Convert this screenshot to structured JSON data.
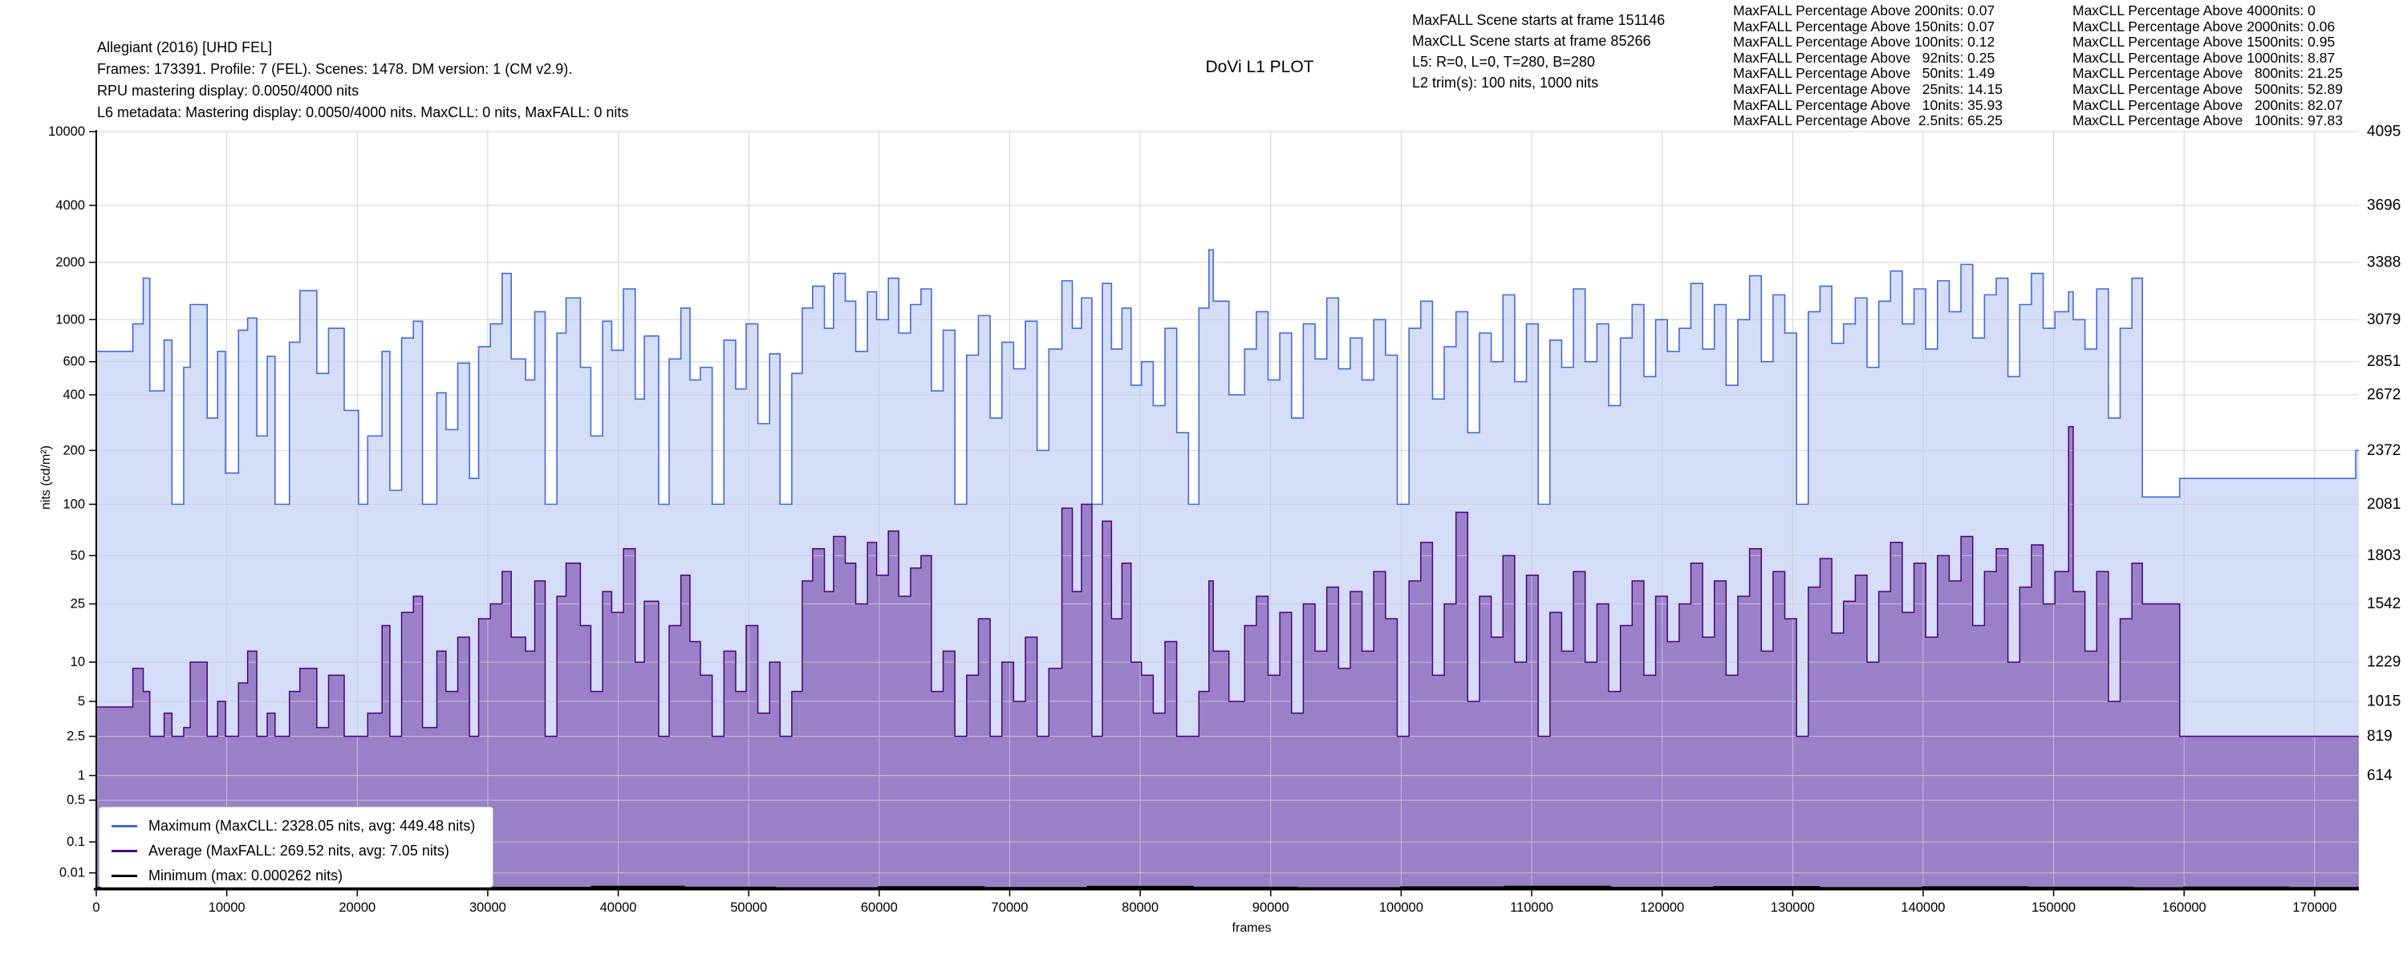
{
  "header": {
    "lines": [
      "Allegiant (2016) [UHD FEL]",
      "Frames: 173391. Profile: 7 (FEL). Scenes: 1478. DM version: 1 (CM v2.9).",
      "RPU mastering display: 0.0050/4000 nits",
      "L6 metadata: Mastering display: 0.0050/4000 nits. MaxCLL: 0 nits, MaxFALL: 0 nits"
    ]
  },
  "title": "DoVi L1 PLOT",
  "scene_info": {
    "lines": [
      "MaxFALL Scene starts at frame 151146",
      "MaxCLL Scene starts at frame 85266",
      "L5: R=0, L=0, T=280, B=280",
      "L2 trim(s): 100 nits, 1000 nits"
    ]
  },
  "stats_maxfall": {
    "lines": [
      "MaxFALL Percentage Above 200nits: 0.07",
      "MaxFALL Percentage Above 150nits: 0.07",
      "MaxFALL Percentage Above 100nits: 0.12",
      "MaxFALL Percentage Above   92nits: 0.25",
      "MaxFALL Percentage Above   50nits: 1.49",
      "MaxFALL Percentage Above   25nits: 14.15",
      "MaxFALL Percentage Above   10nits: 35.93",
      "MaxFALL Percentage Above  2.5nits: 65.25"
    ]
  },
  "stats_maxcll": {
    "lines": [
      "MaxCLL Percentage Above 4000nits: 0",
      "MaxCLL Percentage Above 2000nits: 0.06",
      "MaxCLL Percentage Above 1500nits: 0.95",
      "MaxCLL Percentage Above 1000nits: 8.87",
      "MaxCLL Percentage Above   800nits: 21.25",
      "MaxCLL Percentage Above   500nits: 52.89",
      "MaxCLL Percentage Above   200nits: 82.07",
      "MaxCLL Percentage Above   100nits: 97.83"
    ]
  },
  "legend": {
    "items": [
      {
        "label": "Maximum (MaxCLL: 2328.05 nits, avg: 449.48 nits)",
        "color": "#4169e1"
      },
      {
        "label": "Average (MaxFALL: 269.52 nits, avg: 7.05 nits)",
        "color": "#4b0082"
      },
      {
        "label": "Minimum (max: 0.000262 nits)",
        "color": "#000000"
      }
    ]
  },
  "axes": {
    "y_label": "nits (cd/m²)",
    "x_label": "frames",
    "y_ticks": [
      {
        "nits": 10000,
        "left": "10000",
        "right": "4095"
      },
      {
        "nits": 4000,
        "left": "4000",
        "right": "3696"
      },
      {
        "nits": 2000,
        "left": "2000",
        "right": "3388"
      },
      {
        "nits": 1000,
        "left": "1000",
        "right": "3079"
      },
      {
        "nits": 600,
        "left": "600",
        "right": "2851"
      },
      {
        "nits": 400,
        "left": "400",
        "right": "2672"
      },
      {
        "nits": 200,
        "left": "200",
        "right": "2372"
      },
      {
        "nits": 100,
        "left": "100",
        "right": "2081"
      },
      {
        "nits": 50,
        "left": "50",
        "right": "1803"
      },
      {
        "nits": 25,
        "left": "25",
        "right": "1542"
      },
      {
        "nits": 10,
        "left": "10",
        "right": "1229"
      },
      {
        "nits": 5,
        "left": "5",
        "right": "1015"
      },
      {
        "nits": 2.5,
        "left": "2.5",
        "right": "819"
      },
      {
        "nits": 1,
        "left": "1",
        "right": "614"
      },
      {
        "nits": 0.5,
        "left": "0.5",
        "right": ""
      },
      {
        "nits": 0.1,
        "left": "0.1",
        "right": ""
      },
      {
        "nits": 0.01,
        "left": "0.01",
        "right": ""
      }
    ],
    "x_ticks": [
      0,
      10000,
      20000,
      30000,
      40000,
      50000,
      60000,
      70000,
      80000,
      90000,
      100000,
      110000,
      120000,
      130000,
      140000,
      150000,
      160000,
      170000
    ]
  },
  "chart_data": {
    "type": "area",
    "title": "DoVi L1 PLOT",
    "xlabel": "frames",
    "ylabel": "nits (cd/m²)",
    "x_range": [
      0,
      173391
    ],
    "end_frame": 173391,
    "y_scale": "linear in 12-bit PQ code (ST 2084), 0 code at bottom, 4095 (10000 nits) at top",
    "grid": true,
    "legend_position": "lower left",
    "annotations": {
      "maxcll_nits": 2328.05,
      "maxcll_scene_start_frame": 85266,
      "maxfall_nits": 269.52,
      "maxfall_scene_start_frame": 151146,
      "max_avg_nits": 449.48,
      "avg_avg_nits": 7.05,
      "minimum_max_nits": 0.000262
    },
    "series_meta": [
      {
        "name": "Maximum",
        "line_color": "#4169e1",
        "fill_color": "rgba(65,105,225,0.22)"
      },
      {
        "name": "Average",
        "line_color": "#4b0082",
        "fill_color": "rgba(75,0,130,0.42)"
      },
      {
        "name": "Minimum",
        "line_color": "#000000",
        "fill_color": "none"
      }
    ],
    "scenes_columns": [
      "start_frame",
      "max_nits",
      "avg_nits"
    ],
    "scenes": [
      [
        0,
        680,
        4.5
      ],
      [
        2800,
        950,
        9
      ],
      [
        3600,
        1650,
        6
      ],
      [
        4100,
        420,
        2.5
      ],
      [
        5200,
        780,
        4
      ],
      [
        5800,
        100,
        2.5
      ],
      [
        6700,
        560,
        3
      ],
      [
        7200,
        1200,
        10
      ],
      [
        8500,
        300,
        2.5
      ],
      [
        9300,
        680,
        5
      ],
      [
        9900,
        150,
        2.5
      ],
      [
        10900,
        880,
        7
      ],
      [
        11600,
        1020,
        12
      ],
      [
        12300,
        240,
        2.5
      ],
      [
        13100,
        640,
        4
      ],
      [
        13700,
        100,
        2.5
      ],
      [
        14800,
        760,
        6
      ],
      [
        15600,
        1420,
        9
      ],
      [
        16900,
        520,
        3
      ],
      [
        17800,
        900,
        8
      ],
      [
        19000,
        330,
        2.5
      ],
      [
        20100,
        100,
        2.5
      ],
      [
        20800,
        240,
        4
      ],
      [
        21900,
        680,
        18
      ],
      [
        22500,
        120,
        2.5
      ],
      [
        23400,
        800,
        22
      ],
      [
        24300,
        980,
        28
      ],
      [
        25000,
        100,
        3
      ],
      [
        26100,
        410,
        12
      ],
      [
        26800,
        260,
        6
      ],
      [
        27700,
        590,
        15
      ],
      [
        28600,
        140,
        2.5
      ],
      [
        29300,
        720,
        20
      ],
      [
        30200,
        950,
        25
      ],
      [
        31100,
        1750,
        40
      ],
      [
        31800,
        620,
        15
      ],
      [
        32900,
        480,
        12
      ],
      [
        33600,
        1100,
        35
      ],
      [
        34400,
        100,
        2.5
      ],
      [
        35300,
        850,
        28
      ],
      [
        36000,
        1300,
        45
      ],
      [
        37100,
        560,
        18
      ],
      [
        37900,
        240,
        6
      ],
      [
        38800,
        980,
        30
      ],
      [
        39500,
        690,
        22
      ],
      [
        40400,
        1450,
        55
      ],
      [
        41300,
        380,
        10
      ],
      [
        42000,
        820,
        26
      ],
      [
        43100,
        100,
        2.5
      ],
      [
        43900,
        620,
        18
      ],
      [
        44800,
        1150,
        38
      ],
      [
        45500,
        480,
        14
      ],
      [
        46300,
        560,
        8
      ],
      [
        47200,
        100,
        2.5
      ],
      [
        48100,
        780,
        12
      ],
      [
        49000,
        430,
        6
      ],
      [
        49800,
        950,
        18
      ],
      [
        50700,
        280,
        4
      ],
      [
        51600,
        660,
        10
      ],
      [
        52400,
        100,
        2.5
      ],
      [
        53300,
        520,
        6
      ],
      [
        54100,
        1150,
        35
      ],
      [
        54900,
        1500,
        55
      ],
      [
        55800,
        900,
        30
      ],
      [
        56500,
        1750,
        65
      ],
      [
        57400,
        1250,
        45
      ],
      [
        58200,
        680,
        25
      ],
      [
        59100,
        1400,
        60
      ],
      [
        59800,
        1000,
        38
      ],
      [
        60700,
        1650,
        70
      ],
      [
        61500,
        850,
        28
      ],
      [
        62400,
        1200,
        42
      ],
      [
        63200,
        1450,
        50
      ],
      [
        64000,
        420,
        6
      ],
      [
        64900,
        880,
        12
      ],
      [
        65800,
        100,
        2.5
      ],
      [
        66700,
        650,
        8
      ],
      [
        67600,
        1050,
        20
      ],
      [
        68500,
        300,
        2.5
      ],
      [
        69400,
        760,
        10
      ],
      [
        70300,
        550,
        5
      ],
      [
        71200,
        980,
        15
      ],
      [
        72100,
        200,
        2.5
      ],
      [
        73000,
        700,
        9
      ],
      [
        74000,
        1600,
        95
      ],
      [
        74800,
        900,
        30
      ],
      [
        75500,
        1300,
        100
      ],
      [
        76300,
        100,
        2.5
      ],
      [
        77100,
        1550,
        80
      ],
      [
        77800,
        700,
        20
      ],
      [
        78600,
        1150,
        45
      ],
      [
        79300,
        450,
        10
      ],
      [
        80100,
        600,
        8
      ],
      [
        81000,
        350,
        4
      ],
      [
        81900,
        900,
        14
      ],
      [
        82800,
        250,
        2.5
      ],
      [
        83700,
        100,
        2.5
      ],
      [
        84500,
        1150,
        6
      ],
      [
        85266,
        2328.05,
        35
      ],
      [
        85600,
        1250,
        12
      ],
      [
        86800,
        400,
        5
      ],
      [
        88000,
        700,
        18
      ],
      [
        88900,
        1100,
        28
      ],
      [
        89800,
        480,
        8
      ],
      [
        90700,
        850,
        22
      ],
      [
        91600,
        300,
        4
      ],
      [
        92500,
        950,
        25
      ],
      [
        93400,
        620,
        12
      ],
      [
        94300,
        1300,
        32
      ],
      [
        95200,
        550,
        9
      ],
      [
        96100,
        800,
        30
      ],
      [
        97000,
        480,
        12
      ],
      [
        97900,
        1000,
        40
      ],
      [
        98800,
        650,
        20
      ],
      [
        99700,
        100,
        2.5
      ],
      [
        100600,
        900,
        35
      ],
      [
        101500,
        1250,
        60
      ],
      [
        102400,
        380,
        8
      ],
      [
        103300,
        720,
        25
      ],
      [
        104200,
        1100,
        90
      ],
      [
        105100,
        250,
        5
      ],
      [
        106000,
        850,
        28
      ],
      [
        106900,
        600,
        15
      ],
      [
        107800,
        1350,
        50
      ],
      [
        108700,
        470,
        10
      ],
      [
        109600,
        950,
        38
      ],
      [
        110500,
        100,
        2.5
      ],
      [
        111400,
        780,
        22
      ],
      [
        112300,
        560,
        12
      ],
      [
        113200,
        1450,
        40
      ],
      [
        114100,
        600,
        10
      ],
      [
        115000,
        950,
        25
      ],
      [
        115900,
        350,
        6
      ],
      [
        116800,
        800,
        18
      ],
      [
        117700,
        1200,
        35
      ],
      [
        118600,
        500,
        8
      ],
      [
        119500,
        1000,
        28
      ],
      [
        120400,
        680,
        14
      ],
      [
        121300,
        900,
        25
      ],
      [
        122200,
        1550,
        45
      ],
      [
        123100,
        700,
        15
      ],
      [
        124000,
        1200,
        35
      ],
      [
        124900,
        450,
        8
      ],
      [
        125800,
        1000,
        28
      ],
      [
        126700,
        1700,
        55
      ],
      [
        127600,
        600,
        12
      ],
      [
        128500,
        1350,
        40
      ],
      [
        129400,
        850,
        20
      ],
      [
        130300,
        100,
        2.5
      ],
      [
        131200,
        1100,
        32
      ],
      [
        132100,
        1500,
        48
      ],
      [
        133000,
        750,
        16
      ],
      [
        133900,
        950,
        26
      ],
      [
        134800,
        1300,
        38
      ],
      [
        135700,
        560,
        10
      ],
      [
        136600,
        1250,
        30
      ],
      [
        137500,
        1800,
        60
      ],
      [
        138400,
        950,
        22
      ],
      [
        139300,
        1450,
        45
      ],
      [
        140200,
        700,
        15
      ],
      [
        141100,
        1600,
        50
      ],
      [
        142000,
        1100,
        35
      ],
      [
        142900,
        1950,
        65
      ],
      [
        143800,
        800,
        18
      ],
      [
        144700,
        1350,
        40
      ],
      [
        145600,
        1650,
        55
      ],
      [
        146500,
        500,
        10
      ],
      [
        147400,
        1200,
        32
      ],
      [
        148300,
        1750,
        58
      ],
      [
        149200,
        900,
        25
      ],
      [
        150100,
        1100,
        40
      ],
      [
        151146,
        1400,
        269.52
      ],
      [
        151500,
        1000,
        30
      ],
      [
        152400,
        700,
        12
      ],
      [
        153300,
        1450,
        40
      ],
      [
        154200,
        300,
        5
      ],
      [
        155100,
        900,
        20
      ],
      [
        156000,
        1650,
        45
      ],
      [
        156800,
        110,
        25
      ],
      [
        159660,
        140,
        2.5
      ],
      [
        173150,
        200,
        2.5
      ]
    ],
    "minimum_steps_columns": [
      "start_frame",
      "min_nits"
    ],
    "minimum_steps": [
      [
        0,
        6e-05
      ],
      [
        9000,
        0.00012
      ],
      [
        15000,
        5e-05
      ],
      [
        22000,
        0.0002
      ],
      [
        30000,
        8e-05
      ],
      [
        38000,
        0.00026
      ],
      [
        45000,
        0.0001
      ],
      [
        52000,
        5e-05
      ],
      [
        60000,
        0.00018
      ],
      [
        68000,
        7e-05
      ],
      [
        76000,
        0.00024
      ],
      [
        84000,
        0.0001
      ],
      [
        92000,
        5e-05
      ],
      [
        100000,
        0.00015
      ],
      [
        108000,
        0.00026
      ],
      [
        116000,
        8e-05
      ],
      [
        124000,
        0.0002
      ],
      [
        132000,
        6e-05
      ],
      [
        140000,
        0.00017
      ],
      [
        148000,
        0.0001
      ],
      [
        156000,
        5e-05
      ],
      [
        160000,
        0.00012
      ],
      [
        168000,
        7e-05
      ]
    ]
  }
}
